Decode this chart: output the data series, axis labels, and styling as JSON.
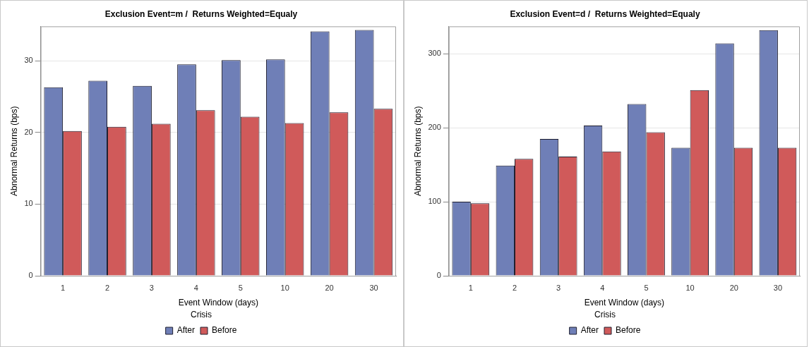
{
  "chart_data": [
    {
      "type": "bar",
      "title": "Exclusion Event=m /  Returns Weighted=Equaly",
      "xlabel": "Event Window (days)",
      "ylabel": "Abnormal Returns (bps)",
      "legend_title": "Crisis",
      "categories": [
        "1",
        "2",
        "3",
        "4",
        "5",
        "10",
        "20",
        "30"
      ],
      "series": [
        {
          "name": "After",
          "color": "#6f7fb7",
          "values": [
            26.3,
            27.2,
            26.5,
            29.5,
            30.1,
            30.2,
            34.1,
            34.3
          ]
        },
        {
          "name": "Before",
          "color": "#d05a5a",
          "values": [
            20.2,
            20.8,
            21.2,
            23.1,
            22.2,
            21.3,
            22.8,
            23.3
          ]
        }
      ],
      "ylim": [
        0,
        34.8
      ],
      "yticks": [
        0,
        10,
        20,
        30
      ],
      "grid": "y",
      "legend": "bottom"
    },
    {
      "type": "bar",
      "title": "Exclusion Event=d /  Returns Weighted=Equaly",
      "xlabel": "Event Window (days)",
      "ylabel": "Abnormal Returns (bps)",
      "legend_title": "Crisis",
      "categories": [
        "1",
        "2",
        "3",
        "4",
        "5",
        "10",
        "20",
        "30"
      ],
      "series": [
        {
          "name": "After",
          "color": "#6f7fb7",
          "values": [
            100,
            149,
            185,
            203,
            232,
            173,
            314,
            332
          ]
        },
        {
          "name": "Before",
          "color": "#d05a5a",
          "values": [
            98,
            158,
            161,
            168,
            194,
            251,
            173,
            173
          ]
        }
      ],
      "ylim": [
        0,
        337
      ],
      "yticks": [
        0,
        100,
        200,
        300
      ],
      "grid": "y",
      "legend": "bottom"
    }
  ]
}
